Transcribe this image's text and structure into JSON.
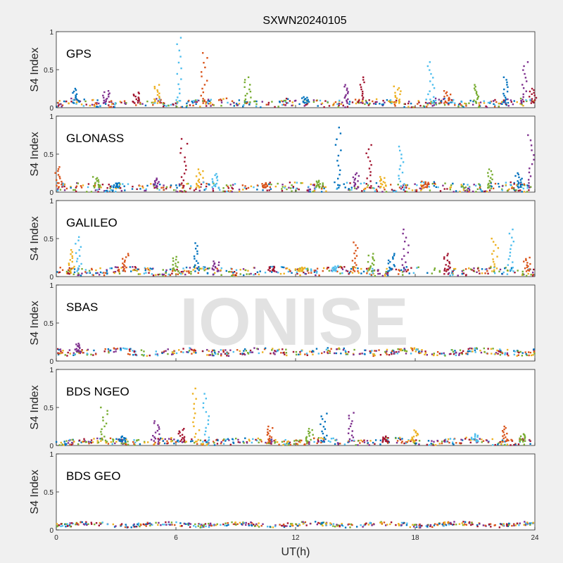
{
  "title": "SXWN20240105",
  "watermark": "IONISE",
  "colors": [
    "#0072BD",
    "#D95319",
    "#EDB120",
    "#7E2F8E",
    "#77AC30",
    "#4DBEEE",
    "#A2142F"
  ],
  "chart_data": {
    "type": "scatter",
    "title": "SXWN20240105",
    "xlabel": "UT(h)",
    "ylabel": "S4 Index",
    "xlim": [
      0,
      24
    ],
    "ylim": [
      0,
      1
    ],
    "xticks": [
      "0",
      "6",
      "12",
      "18",
      "24"
    ],
    "yticks": [
      "0",
      "0.5",
      "1"
    ],
    "grid": false,
    "panels": [
      {
        "label": "GPS",
        "baseline": 0.06,
        "noise": 0.05,
        "spikes": [
          [
            1.0,
            0.25
          ],
          [
            2.5,
            0.22
          ],
          [
            4.0,
            0.2
          ],
          [
            5.0,
            0.3
          ],
          [
            6.2,
            0.92
          ],
          [
            7.4,
            0.72
          ],
          [
            9.6,
            0.4
          ],
          [
            12.5,
            0.14
          ],
          [
            14.5,
            0.3
          ],
          [
            15.3,
            0.4
          ],
          [
            17.1,
            0.28
          ],
          [
            18.8,
            0.6
          ],
          [
            19.6,
            0.22
          ],
          [
            21.0,
            0.3
          ],
          [
            22.5,
            0.4
          ],
          [
            23.5,
            0.6
          ],
          [
            23.9,
            0.25
          ]
        ]
      },
      {
        "label": "GLONASS",
        "baseline": 0.06,
        "noise": 0.06,
        "spikes": [
          [
            0.1,
            0.33
          ],
          [
            2.0,
            0.2
          ],
          [
            3.0,
            0.12
          ],
          [
            5.0,
            0.18
          ],
          [
            6.4,
            0.7
          ],
          [
            7.2,
            0.3
          ],
          [
            8.0,
            0.24
          ],
          [
            10.5,
            0.12
          ],
          [
            13.2,
            0.15
          ],
          [
            14.1,
            0.85
          ],
          [
            15.0,
            0.25
          ],
          [
            15.7,
            0.62
          ],
          [
            16.4,
            0.2
          ],
          [
            17.3,
            0.6
          ],
          [
            18.5,
            0.14
          ],
          [
            21.7,
            0.3
          ],
          [
            23.2,
            0.25
          ],
          [
            23.8,
            0.75
          ]
        ]
      },
      {
        "label": "GALILEO",
        "baseline": 0.07,
        "noise": 0.05,
        "spikes": [
          [
            0.8,
            0.35
          ],
          [
            1.1,
            0.52
          ],
          [
            3.5,
            0.3
          ],
          [
            6.0,
            0.26
          ],
          [
            7.0,
            0.44
          ],
          [
            8.0,
            0.2
          ],
          [
            10.8,
            0.13
          ],
          [
            12.3,
            0.12
          ],
          [
            14.0,
            0.14
          ],
          [
            15.0,
            0.45
          ],
          [
            15.8,
            0.3
          ],
          [
            16.8,
            0.3
          ],
          [
            17.5,
            0.62
          ],
          [
            19.6,
            0.3
          ],
          [
            22.0,
            0.5
          ],
          [
            22.8,
            0.62
          ],
          [
            23.6,
            0.25
          ]
        ]
      },
      {
        "label": "SBAS",
        "baseline": 0.12,
        "noise": 0.04,
        "spikes": [
          [
            1.1,
            0.23
          ]
        ]
      },
      {
        "label": "BDS NGEO",
        "baseline": 0.05,
        "noise": 0.04,
        "spikes": [
          [
            2.4,
            0.5
          ],
          [
            3.3,
            0.12
          ],
          [
            5.0,
            0.32
          ],
          [
            6.3,
            0.22
          ],
          [
            7.0,
            0.75
          ],
          [
            7.5,
            0.68
          ],
          [
            10.7,
            0.25
          ],
          [
            12.7,
            0.22
          ],
          [
            13.4,
            0.42
          ],
          [
            14.8,
            0.43
          ],
          [
            16.5,
            0.12
          ],
          [
            18.0,
            0.2
          ],
          [
            21.0,
            0.15
          ],
          [
            22.5,
            0.25
          ],
          [
            23.4,
            0.15
          ]
        ]
      },
      {
        "label": "BDS GEO",
        "baseline": 0.07,
        "noise": 0.025,
        "spikes": []
      }
    ]
  }
}
